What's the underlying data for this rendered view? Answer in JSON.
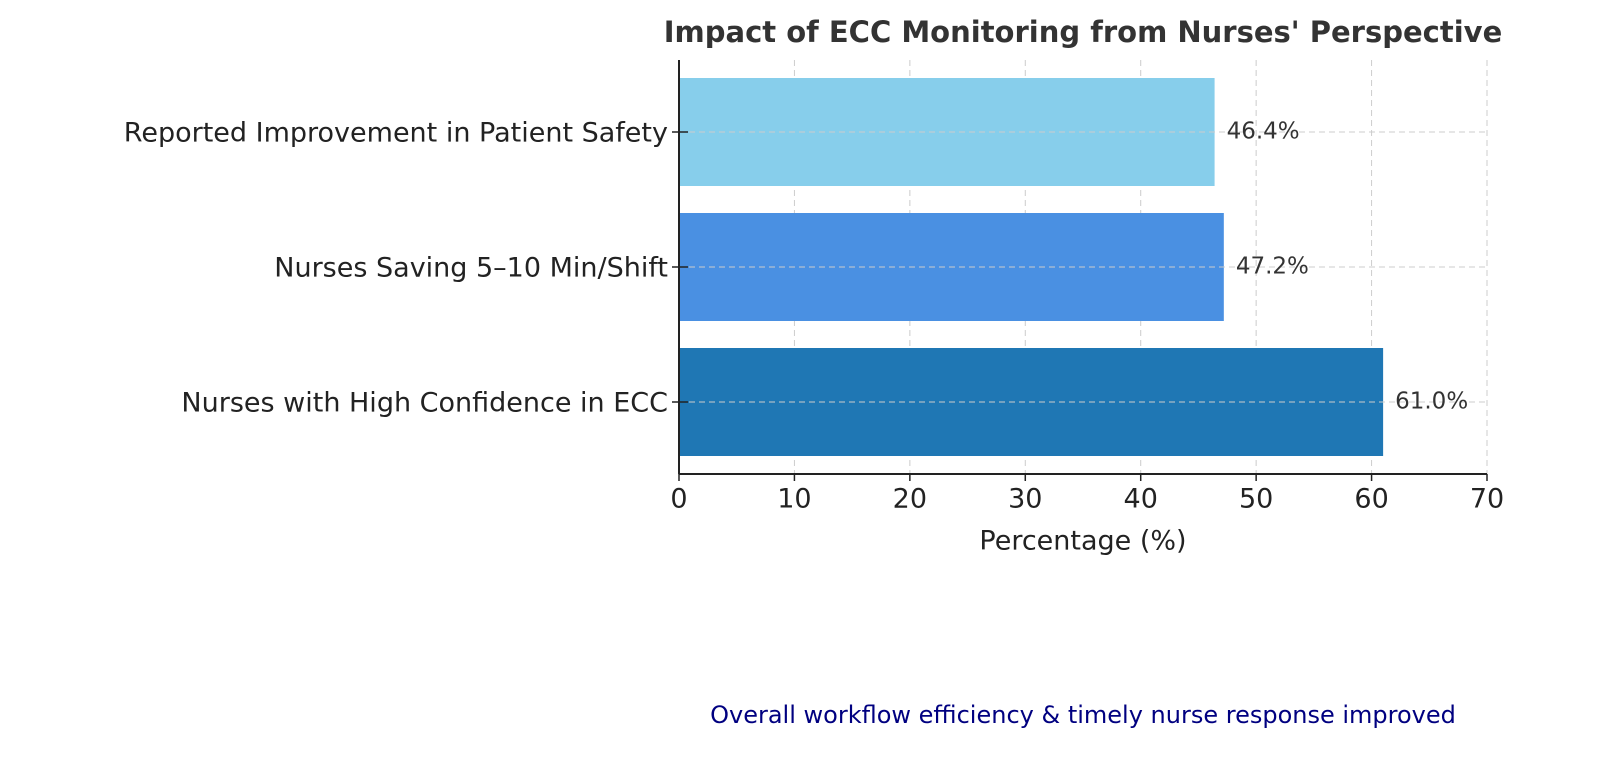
{
  "chart_data": {
    "type": "barh",
    "title": "Impact of ECC Monitoring from Nurses' Perspective",
    "categories": [
      "Reported Improvement in Patient Safety",
      "Nurses Saving 5–10 Min/Shift",
      "Nurses with High Confidence in ECC"
    ],
    "values": [
      46.4,
      47.2,
      61.0
    ],
    "value_labels": [
      "46.4%",
      "47.2%",
      "61.0%"
    ],
    "colors": [
      "#87ceeb",
      "#4a90e2",
      "#1f77b4"
    ],
    "xlabel": "Percentage (%)",
    "xlim": [
      0,
      70
    ],
    "xticks": [
      0,
      10,
      20,
      30,
      40,
      50,
      60,
      70
    ],
    "grid": true,
    "annotation": "Overall workflow efficiency & timely nurse response improved"
  }
}
